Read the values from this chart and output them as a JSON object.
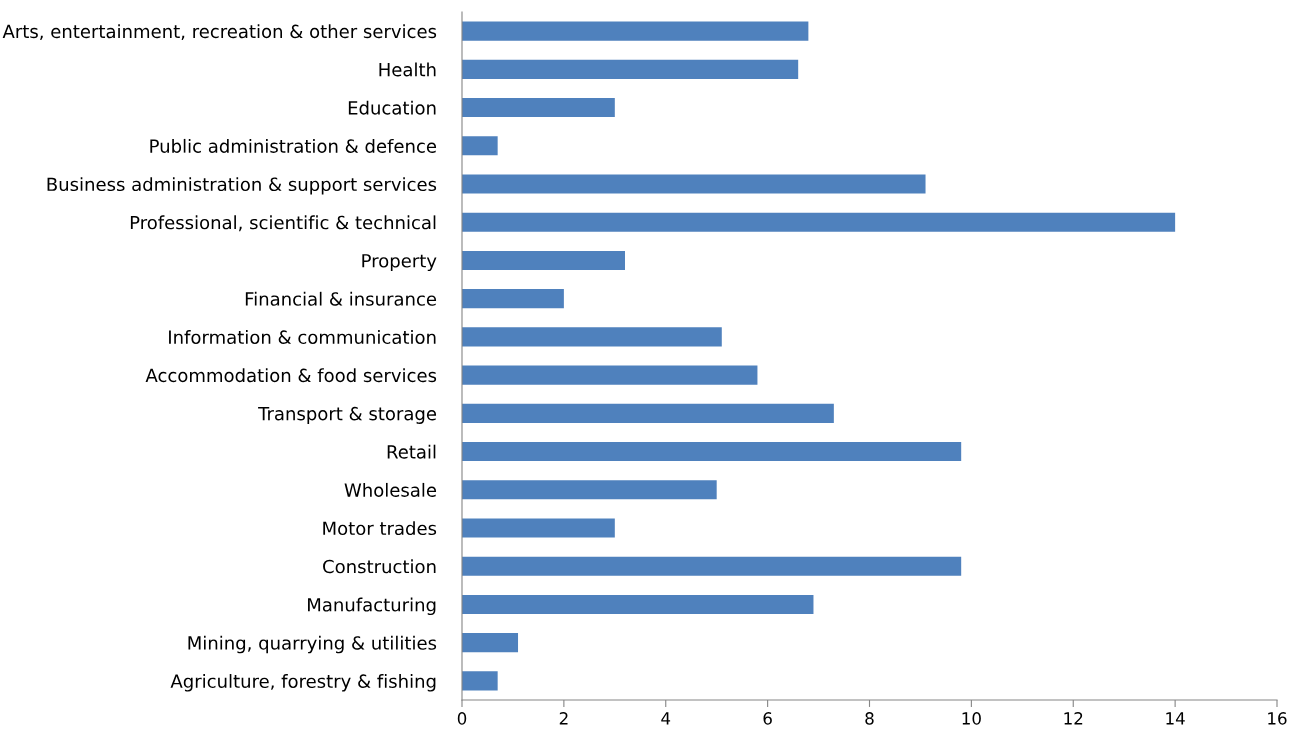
{
  "chart_data": {
    "type": "bar",
    "orientation": "horizontal",
    "categories": [
      "Arts, entertainment, recreation & other services",
      "Health",
      "Education",
      "Public administration & defence",
      "Business administration & support services",
      "Professional, scientific & technical",
      "Property",
      "Financial & insurance",
      "Information & communication",
      "Accommodation & food services",
      "Transport & storage",
      "Retail",
      "Wholesale",
      "Motor trades",
      "Construction",
      "Manufacturing",
      "Mining, quarrying & utilities",
      "Agriculture, forestry & fishing"
    ],
    "values": [
      6.8,
      6.6,
      3.0,
      0.7,
      9.1,
      14.0,
      3.2,
      2.0,
      5.1,
      5.8,
      7.3,
      9.8,
      5.0,
      3.0,
      9.8,
      6.9,
      1.1,
      0.7
    ],
    "color": "#4f81bd",
    "xlim": [
      0,
      16
    ],
    "xticks": [
      0,
      2,
      4,
      6,
      8,
      10,
      12,
      14,
      16
    ],
    "grid": false
  }
}
